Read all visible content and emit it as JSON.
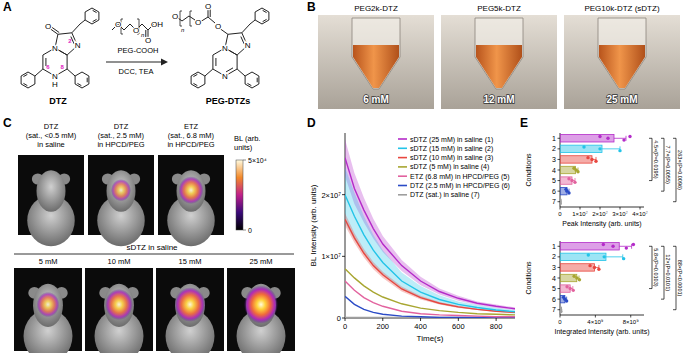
{
  "panel_labels": [
    "A",
    "B",
    "C",
    "D",
    "E"
  ],
  "panel_a": {
    "reactant_name": "DTZ",
    "product_name": "PEG-DTZs",
    "reagent_name": "PEG-COOH",
    "conditions": "DCC, TEA",
    "atom_labels": {
      "oxygen": "O",
      "nitrogen": "N",
      "hydrogen": "H",
      "hydroxyl": "OH",
      "repeat": "n"
    },
    "positions": [
      "2",
      "6",
      "8"
    ]
  },
  "panel_b": {
    "tubes": [
      {
        "name": "PEG2k-DTZ",
        "concentration": "6 mM"
      },
      {
        "name": "PEG5k-DTZ",
        "concentration": "12 mM"
      },
      {
        "name": "PEG10k-DTZ (sDTZ)",
        "concentration": "25 mM"
      }
    ]
  },
  "panel_c": {
    "top_images": [
      {
        "title": [
          "DTZ",
          "(sat., <0.5 mM)",
          "in saline"
        ]
      },
      {
        "title": [
          "DTZ",
          "(sat., 2.5 mM)",
          "in HPCD/PEG"
        ]
      },
      {
        "title": [
          "ETZ",
          "(sat., 6.8 mM)",
          "in HPCD/PEG"
        ]
      }
    ],
    "group_title": "sDTZ in saline",
    "bottom_images": [
      "5 mM",
      "10 mM",
      "15 mM",
      "25 mM"
    ],
    "colorbar": {
      "title": [
        "BL (arb.",
        "units)"
      ],
      "range": [
        0,
        50000
      ],
      "ticks": [
        {
          "value": 50000,
          "label": "5×10⁴"
        },
        0
      ]
    }
  },
  "chart_data": [
    {
      "type": "line",
      "x_label": "Time(s)",
      "y_label": "BL Intensity (arb. units)",
      "x": [
        0,
        50,
        100,
        150,
        200,
        300,
        400,
        500,
        600,
        700,
        800,
        900
      ],
      "xlim": [
        0,
        900
      ],
      "xticks": [
        0,
        200,
        400,
        600,
        800
      ],
      "ylim": [
        0,
        30000000
      ],
      "yticks": [
        0,
        {
          "value": 10000000,
          "label": "1×10⁷"
        },
        {
          "value": 20000000,
          "label": "2×10⁷"
        }
      ],
      "legend": "upper right",
      "series": [
        {
          "name": "sDTZ (25 mM) in saline (1)",
          "color": "#b42bc9",
          "values": [
            26000000,
            21000000,
            17500000,
            14500000,
            12000000,
            8500000,
            6000000,
            4300000,
            3200000,
            2400000,
            1900000,
            1500000
          ],
          "errors": [
            3000000,
            2500000,
            2000000,
            1600000,
            1300000,
            900000,
            700000,
            500000,
            400000,
            300000,
            300000,
            200000
          ]
        },
        {
          "name": "sDTZ (15 mM) in saline (2)",
          "color": "#23c4e8",
          "values": [
            20000000,
            16500000,
            13500000,
            11000000,
            9000000,
            6000000,
            4200000,
            3000000,
            2200000,
            1700000,
            1300000,
            1000000
          ],
          "errors": [
            4500000,
            3800000,
            3000000,
            2500000,
            2000000,
            1400000,
            1000000,
            700000,
            500000,
            400000,
            300000,
            300000
          ]
        },
        {
          "name": "sDTZ (10 mM) in saline (3)",
          "color": "#e8473f",
          "values": [
            16000000,
            13000000,
            10500000,
            8500000,
            7000000,
            4700000,
            3300000,
            2400000,
            1800000,
            1400000,
            1100000,
            900000
          ],
          "errors": [
            1000000,
            800000,
            700000,
            600000,
            500000,
            400000,
            300000,
            200000,
            200000,
            100000,
            100000,
            100000
          ]
        },
        {
          "name": "sDTZ (5 mM) in saline (4)",
          "color": "#a8a631",
          "values": [
            8000000,
            6500000,
            5200000,
            4200000,
            3400000,
            2300000,
            1600000,
            1200000,
            900000,
            700000,
            600000,
            500000
          ]
        },
        {
          "name": "ETZ (6.8 mM) in HPCD/PEG (5)",
          "color": "#e2629e",
          "values": [
            6000000,
            4500000,
            3300000,
            2500000,
            1900000,
            1100000,
            700000,
            500000,
            400000,
            300000,
            200000,
            200000
          ]
        },
        {
          "name": "DTZ (2.5 mM) in HPCD/PEG (6)",
          "color": "#2b4bc6",
          "values": [
            3500000,
            2200000,
            1400000,
            900000,
            600000,
            300000,
            200000,
            100000,
            100000,
            100000,
            50000,
            50000
          ]
        },
        {
          "name": "DTZ (sat.) in saline (7)",
          "color": "#9e9e9e",
          "values": [
            100000,
            100000,
            100000,
            100000,
            100000,
            100000,
            100000,
            100000,
            100000,
            100000,
            100000,
            100000
          ]
        }
      ]
    },
    {
      "type": "bar",
      "orientation": "horizontal",
      "categories": [
        "1",
        "2",
        "3",
        "4",
        "5",
        "6",
        "7"
      ],
      "x_label": "Peak Intensity (arb. units)",
      "y_label": "Conditions",
      "xlim": [
        0,
        42000000
      ],
      "xticks": [
        0,
        {
          "value": 10000000,
          "label": "1×10⁷"
        },
        {
          "value": 20000000,
          "label": "2×10⁷"
        },
        {
          "value": 30000000,
          "label": "3×10⁷"
        },
        {
          "value": 40000000,
          "label": "4×10⁷"
        }
      ],
      "values": [
        27000000,
        21000000,
        16000000,
        7800000,
        6000000,
        3500000,
        100000
      ],
      "errors": [
        6000000,
        9000000,
        2000000,
        1200000,
        1500000,
        1000000,
        0
      ],
      "points": [
        [
          20000000,
          24000000,
          32000000,
          35000000
        ],
        [
          12000000,
          20000000,
          30000000
        ],
        [
          14000000,
          16000000,
          18000000
        ],
        [
          7000000,
          8000000,
          9000000
        ],
        [
          4500000,
          6000000,
          7500000
        ],
        [
          3000000,
          3500000,
          4500000
        ],
        [
          50000,
          100000,
          150000
        ]
      ],
      "colors": [
        "#b42bc9",
        "#23c4e8",
        "#e8473f",
        "#a8a631",
        "#e2629e",
        "#2b4bc6",
        "#9e9e9e"
      ],
      "annotations": [
        {
          "text": "4.5×(P=0.0195)",
          "from": "1",
          "to": "5"
        },
        {
          "text": "7.7×(P=0.0055)",
          "from": "1",
          "to": "6"
        },
        {
          "text": "263×(P=0.0096)",
          "from": "1",
          "to": "7"
        }
      ]
    },
    {
      "type": "bar",
      "orientation": "horizontal",
      "categories": [
        "1",
        "2",
        "3",
        "4",
        "5",
        "6",
        "7"
      ],
      "x_label": "Integrated Intensity (arb. units)",
      "y_label": "Conditions",
      "xlim": [
        0,
        9500000000
      ],
      "xticks": [
        0,
        {
          "value": 4000000000,
          "label": "4×10⁹"
        },
        {
          "value": 8000000000,
          "label": "8×10⁹"
        }
      ],
      "values": [
        6700000000,
        5200000000,
        3900000000,
        1900000000,
        1150000000,
        550000000,
        76000000
      ],
      "errors": [
        1400000000,
        1900000000,
        500000000,
        250000000,
        300000000,
        200000000,
        0
      ],
      "points": [
        [
          4900000000,
          6000000000,
          7500000000,
          8300000000
        ],
        [
          3200000000,
          5000000000,
          7200000000
        ],
        [
          3400000000,
          3900000000,
          4400000000
        ],
        [
          1600000000,
          1900000000,
          2200000000
        ],
        [
          800000000,
          1150000000,
          1500000000
        ],
        [
          400000000,
          550000000,
          750000000
        ],
        [
          50000000,
          76000000,
          100000000
        ]
      ],
      "colors": [
        "#b42bc9",
        "#23c4e8",
        "#e8473f",
        "#a8a631",
        "#e2629e",
        "#2b4bc6",
        "#9e9e9e"
      ],
      "annotations": [
        {
          "text": "5.8×(P=0.0103)",
          "from": "1",
          "to": "5"
        },
        {
          "text": "12×(P=0.0101)",
          "from": "1",
          "to": "6"
        },
        {
          "text": "88×(P<0.0001)",
          "from": "1",
          "to": "7"
        }
      ]
    }
  ]
}
